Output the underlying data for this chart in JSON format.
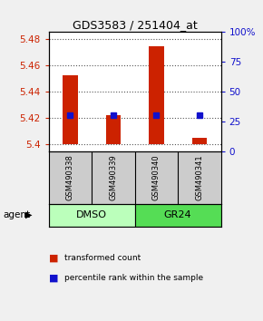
{
  "title": "GDS3583 / 251404_at",
  "samples": [
    "GSM490338",
    "GSM490339",
    "GSM490340",
    "GSM490341"
  ],
  "bar_bottoms": [
    5.4,
    5.4,
    5.4,
    5.4
  ],
  "bar_tops": [
    5.452,
    5.422,
    5.474,
    5.405
  ],
  "bar_color": "#cc2200",
  "percentile_pcts": [
    30,
    30,
    30,
    30
  ],
  "percentile_color": "#1111cc",
  "ylim_left": [
    5.395,
    5.485
  ],
  "yticks_left": [
    5.4,
    5.42,
    5.44,
    5.46,
    5.48
  ],
  "ylim_right": [
    0,
    100
  ],
  "yticks_right": [
    0,
    25,
    50,
    75,
    100
  ],
  "ytick_labels_right": [
    "0",
    "25",
    "50",
    "75",
    "100%"
  ],
  "groups": [
    {
      "label": "DMSO",
      "indices": [
        0,
        1
      ],
      "color": "#bbffbb"
    },
    {
      "label": "GR24",
      "indices": [
        2,
        3
      ],
      "color": "#55dd55"
    }
  ],
  "group_label": "agent",
  "sample_bg_color": "#cccccc",
  "plot_bg": "#ffffff",
  "fig_bg": "#f0f0f0",
  "legend_items": [
    {
      "color": "#cc2200",
      "label": "transformed count"
    },
    {
      "color": "#1111cc",
      "label": "percentile rank within the sample"
    }
  ]
}
